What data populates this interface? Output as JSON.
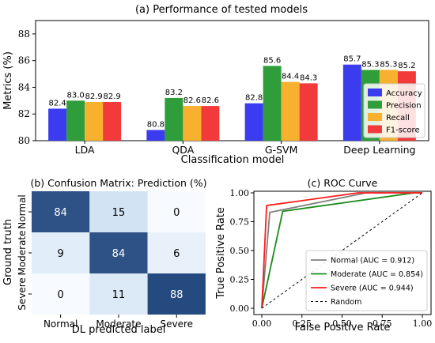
{
  "chart_data": [
    {
      "type": "bar",
      "title": "(a) Performance of tested models",
      "xlabel": "Classification model",
      "ylabel": "Metrics (%)",
      "ylim": [
        80,
        89
      ],
      "yticks": [
        "80",
        "82",
        "84",
        "86",
        "88"
      ],
      "categories": [
        "LDA",
        "QDA",
        "G-SVM",
        "Deep Learning"
      ],
      "series": [
        {
          "name": "Accuracy",
          "color": "#3b3bf0",
          "values": [
            82.4,
            80.8,
            82.8,
            85.7
          ]
        },
        {
          "name": "Precision",
          "color": "#2f9e3a",
          "values": [
            83.0,
            83.2,
            85.6,
            85.3
          ]
        },
        {
          "name": "Recall",
          "color": "#f7b12e",
          "values": [
            82.9,
            82.6,
            84.4,
            85.3
          ]
        },
        {
          "name": "F1-score",
          "color": "#f23a3a",
          "values": [
            82.9,
            82.6,
            84.3,
            85.2
          ]
        }
      ],
      "value_labels": [
        [
          "82.4",
          "83.0",
          "82.9",
          "82.9"
        ],
        [
          "80.8",
          "83.2",
          "82.6",
          "82.6"
        ],
        [
          "82.8",
          "85.6",
          "84.4",
          "84.3"
        ],
        [
          "85.7",
          "85.3",
          "85.3",
          "85.2"
        ]
      ],
      "legend_position": "bottom-right",
      "grid": false
    },
    {
      "type": "heatmap",
      "title": "(b) Confusion Matrix: Prediction (%)",
      "xlabel": "DL predicted label",
      "ylabel": "Ground truth",
      "x_categories": [
        "Normal",
        "Moderate",
        "Severe"
      ],
      "y_categories": [
        "Normal",
        "Moderate",
        "Severe"
      ],
      "matrix": [
        [
          84,
          15,
          0
        ],
        [
          9,
          84,
          6
        ],
        [
          0,
          11,
          88
        ]
      ],
      "colormap": "Blues"
    },
    {
      "type": "line",
      "title": "(c) ROC Curve",
      "xlabel": "False Positive Rate",
      "ylabel": "True Positive Rate",
      "xlim": [
        0,
        1
      ],
      "ylim": [
        0,
        1
      ],
      "xticks": [
        "0.00",
        "0.25",
        "0.50",
        "0.75",
        "1.00"
      ],
      "yticks": [
        "0.00",
        "0.25",
        "0.50",
        "0.75",
        "1.00"
      ],
      "series": [
        {
          "name": "Normal (AUC = 0.912)",
          "color": "#808080",
          "x": [
            0,
            0.05,
            0.65,
            1
          ],
          "y": [
            0,
            0.83,
            1,
            1
          ]
        },
        {
          "name": "Moderate (AUC = 0.854)",
          "color": "#1a8c1a",
          "x": [
            0,
            0.13,
            0.95,
            1
          ],
          "y": [
            0,
            0.84,
            1,
            1
          ]
        },
        {
          "name": "Severe (AUC = 0.944)",
          "color": "#ff1a1a",
          "x": [
            0,
            0.03,
            0.6,
            1
          ],
          "y": [
            0,
            0.89,
            1,
            1
          ]
        },
        {
          "name": "Random",
          "color": "#000000",
          "dashed": true,
          "x": [
            0,
            1
          ],
          "y": [
            0,
            1
          ]
        }
      ],
      "legend_position": "bottom-right"
    }
  ]
}
